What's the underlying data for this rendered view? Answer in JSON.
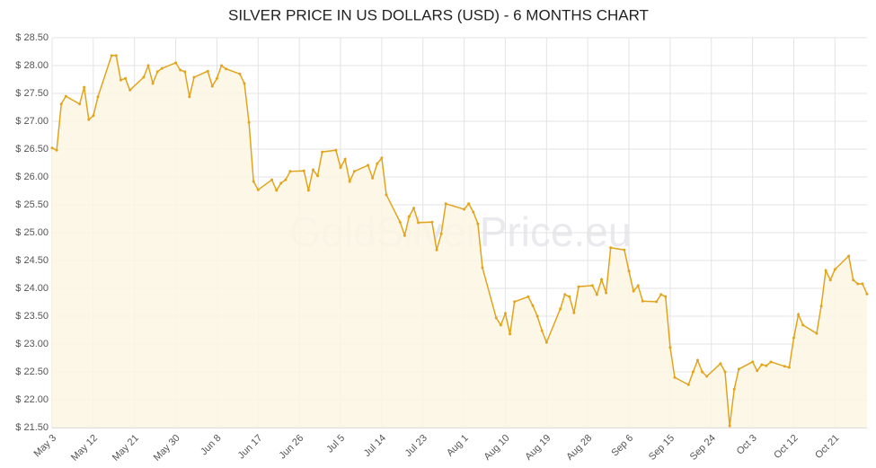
{
  "chart_data": {
    "type": "line",
    "title": "SILVER PRICE IN US DOLLARS (USD) - 6 MONTHS CHART",
    "watermark": "GoldSilverPrice.eu",
    "color": "#e2a41c",
    "fill": "#fdf6e4",
    "grid": true,
    "xlim": [
      0,
      178
    ],
    "ylim": [
      21.5,
      28.5
    ],
    "xticks": [
      {
        "value": 0,
        "label": "May 3"
      },
      {
        "value": 9,
        "label": "May 12"
      },
      {
        "value": 18,
        "label": "May 21"
      },
      {
        "value": 27,
        "label": "May 30"
      },
      {
        "value": 36,
        "label": "Jun 8"
      },
      {
        "value": 45,
        "label": "Jun 17"
      },
      {
        "value": 54,
        "label": "Jun 26"
      },
      {
        "value": 63,
        "label": "Jul 5"
      },
      {
        "value": 72,
        "label": "Jul 14"
      },
      {
        "value": 81,
        "label": "Jul 23"
      },
      {
        "value": 90,
        "label": "Aug 1"
      },
      {
        "value": 99,
        "label": "Aug 10"
      },
      {
        "value": 108,
        "label": "Aug 19"
      },
      {
        "value": 117,
        "label": "Aug 28"
      },
      {
        "value": 126,
        "label": "Sep 6"
      },
      {
        "value": 135,
        "label": "Sep 15"
      },
      {
        "value": 144,
        "label": "Sep 24"
      },
      {
        "value": 153,
        "label": "Oct 3"
      },
      {
        "value": 162,
        "label": "Oct 12"
      },
      {
        "value": 171,
        "label": "Oct 21"
      }
    ],
    "yticks": [
      {
        "value": 21.5,
        "label": "$ 21.50"
      },
      {
        "value": 22,
        "label": "$ 22.00"
      },
      {
        "value": 22.5,
        "label": "$ 22.50"
      },
      {
        "value": 23,
        "label": "$ 23.00"
      },
      {
        "value": 23.5,
        "label": "$ 23.50"
      },
      {
        "value": 24,
        "label": "$ 24.00"
      },
      {
        "value": 24.5,
        "label": "$ 24.50"
      },
      {
        "value": 25,
        "label": "$ 25.00"
      },
      {
        "value": 25.5,
        "label": "$ 25.50"
      },
      {
        "value": 26,
        "label": "$ 26.00"
      },
      {
        "value": 26.5,
        "label": "$ 26.50"
      },
      {
        "value": 27,
        "label": "$ 27.00"
      },
      {
        "value": 27.5,
        "label": "$ 27.50"
      },
      {
        "value": 28,
        "label": "$ 28.00"
      },
      {
        "value": 28.5,
        "label": "$ 28.50"
      }
    ],
    "x": [
      0,
      1,
      2,
      3,
      6,
      7,
      8,
      9,
      10,
      13,
      14,
      15,
      16,
      17,
      20,
      21,
      22,
      23,
      24,
      27,
      28,
      29,
      30,
      31,
      34,
      35,
      36,
      37,
      38,
      41,
      42,
      43,
      44,
      45,
      48,
      49,
      50,
      51,
      52,
      55,
      56,
      57,
      58,
      59,
      62,
      63,
      64,
      65,
      66,
      69,
      70,
      71,
      72,
      73,
      76,
      77,
      78,
      79,
      80,
      83,
      84,
      85,
      86,
      90,
      91,
      92,
      93,
      94,
      97,
      98,
      99,
      100,
      101,
      104,
      105,
      106,
      107,
      108,
      111,
      112,
      113,
      114,
      115,
      118,
      119,
      120,
      121,
      122,
      125,
      126,
      127,
      128,
      129,
      132,
      133,
      134,
      135,
      136,
      139,
      140,
      141,
      142,
      143,
      146,
      147,
      148,
      149,
      150,
      153,
      154,
      155,
      156,
      157,
      160,
      161,
      162,
      163,
      164,
      167,
      168,
      169,
      170,
      171,
      174,
      175,
      176,
      177,
      178
    ],
    "values": [
      26.52,
      26.48,
      27.31,
      27.45,
      27.31,
      27.61,
      27.03,
      27.1,
      27.44,
      28.18,
      28.18,
      27.74,
      27.77,
      27.56,
      27.79,
      28.0,
      27.68,
      27.89,
      27.95,
      28.05,
      27.92,
      27.89,
      27.44,
      27.79,
      27.9,
      27.63,
      27.77,
      28.0,
      27.94,
      27.85,
      27.68,
      26.98,
      25.92,
      25.77,
      25.95,
      25.76,
      25.89,
      25.95,
      26.1,
      26.11,
      25.76,
      26.13,
      26.02,
      26.45,
      26.48,
      26.17,
      26.32,
      25.92,
      26.1,
      26.21,
      25.98,
      26.24,
      26.34,
      25.68,
      25.19,
      24.95,
      25.29,
      25.44,
      25.18,
      25.19,
      24.69,
      24.98,
      25.52,
      25.42,
      25.52,
      25.37,
      25.16,
      24.37,
      23.47,
      23.34,
      23.55,
      23.18,
      23.76,
      23.85,
      23.69,
      23.5,
      23.24,
      23.03,
      23.63,
      23.89,
      23.85,
      23.56,
      24.03,
      24.05,
      23.89,
      24.16,
      23.92,
      24.73,
      24.69,
      24.31,
      23.95,
      24.05,
      23.77,
      23.76,
      23.89,
      23.85,
      22.94,
      22.4,
      22.27,
      22.5,
      22.71,
      22.5,
      22.42,
      22.65,
      22.5,
      21.53,
      22.19,
      22.55,
      22.68,
      22.52,
      22.63,
      22.61,
      22.68,
      22.6,
      22.58,
      23.11,
      23.53,
      23.34,
      23.19,
      23.68,
      24.32,
      24.15,
      24.34,
      24.58,
      24.15,
      24.08,
      24.08,
      23.9
    ]
  }
}
